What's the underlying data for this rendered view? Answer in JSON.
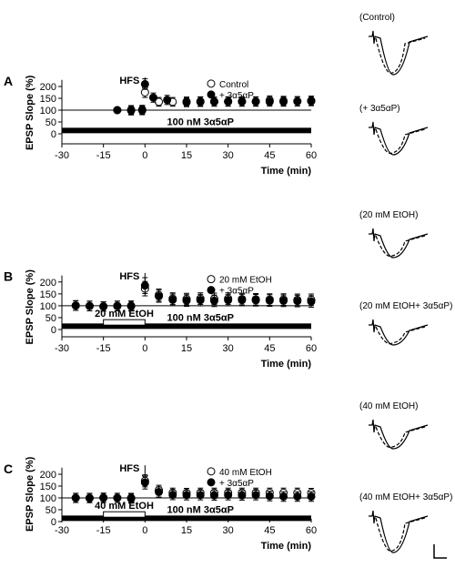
{
  "figure": {
    "panels": [
      {
        "label": "A",
        "hfs_label": "HFS",
        "bar_label": "100 nM 3α5αP",
        "ethanol_label": "",
        "legend": [
          "Control",
          "+ 3α5αP"
        ],
        "ylabel": "EPSP Slope (%)",
        "xlabel": "Time (min)",
        "trace_labels": [
          "(Control)",
          "(+ 3α5αP)"
        ]
      },
      {
        "label": "B",
        "hfs_label": "HFS",
        "bar_label": "100 nM 3α5αP",
        "ethanol_label": "20 mM EtOH",
        "legend": [
          "20 mM EtOH",
          "+ 3α5αP"
        ],
        "ylabel": "EPSP Slope (%)",
        "xlabel": "Time (min)",
        "trace_labels": [
          "(20 mM EtOH)",
          "(20 mM EtOH+ 3α5αP)"
        ]
      },
      {
        "label": "C",
        "hfs_label": "HFS",
        "bar_label": "100 nM 3α5αP",
        "ethanol_label": "40 mM EtOH",
        "legend": [
          "40 mM EtOH",
          "+ 3α5αP"
        ],
        "ylabel": "EPSP Slope (%)",
        "xlabel": "Time (min)",
        "trace_labels": [
          "(40 mM EtOH)",
          "(40 mM EtOH+ 3α5αP)"
        ]
      }
    ]
  },
  "chart_data": [
    {
      "type": "scatter",
      "panel": "A",
      "xlabel": "Time (min)",
      "ylabel": "EPSP Slope (%)",
      "xlim": [
        -30,
        60
      ],
      "ylim": [
        0,
        220
      ],
      "xticks": [
        -30,
        -15,
        0,
        15,
        30,
        45,
        60
      ],
      "yticks": [
        0,
        50,
        100,
        150,
        200
      ],
      "reference_line": 100,
      "hfs_time": 0,
      "drug_bar": [
        -30,
        60
      ],
      "ethanol_bar": null,
      "series": [
        {
          "name": "Control",
          "marker": "open-circle",
          "x": [
            -10,
            -5,
            -1,
            0,
            5,
            10,
            15,
            20,
            25,
            30,
            35,
            40,
            45,
            50,
            55,
            60
          ],
          "y": [
            100,
            101,
            99,
            175,
            135,
            135,
            133,
            135,
            136,
            137,
            136,
            137,
            141,
            139,
            138,
            140
          ],
          "err": [
            0,
            3,
            3,
            6,
            3,
            3,
            3,
            4,
            3,
            4,
            4,
            4,
            4,
            4,
            4,
            4
          ]
        },
        {
          "name": "+ 3α5αP",
          "marker": "filled-circle",
          "x": [
            -10,
            -5,
            -1,
            0,
            3,
            8,
            15,
            20,
            25,
            30,
            35,
            40,
            45,
            50,
            55,
            60
          ],
          "y": [
            100,
            98,
            102,
            210,
            153,
            143,
            136,
            137,
            136,
            136,
            137,
            136,
            136,
            136,
            137,
            138
          ],
          "err": [
            0,
            3,
            3,
            7,
            4,
            4,
            4,
            4,
            4,
            4,
            4,
            4,
            4,
            4,
            4,
            4
          ]
        }
      ]
    },
    {
      "type": "scatter",
      "panel": "B",
      "xlabel": "Time (min)",
      "ylabel": "EPSP Slope (%)",
      "xlim": [
        -30,
        60
      ],
      "ylim": [
        0,
        220
      ],
      "xticks": [
        -30,
        -15,
        0,
        15,
        30,
        45,
        60
      ],
      "yticks": [
        0,
        50,
        100,
        150,
        200
      ],
      "reference_line": 100,
      "hfs_time": 0,
      "drug_bar": [
        -30,
        60
      ],
      "ethanol_bar": [
        -15,
        0
      ],
      "series": [
        {
          "name": "20 mM EtOH",
          "marker": "open-circle",
          "x": [
            -25,
            -20,
            -15,
            -10,
            -5,
            0,
            5,
            10,
            15,
            20,
            25,
            30,
            35,
            40,
            45,
            50,
            55,
            60
          ],
          "y": [
            101,
            99,
            97,
            99,
            100,
            172,
            145,
            130,
            128,
            130,
            129,
            130,
            128,
            127,
            126,
            126,
            125,
            125
          ],
          "err": [
            5,
            5,
            4,
            5,
            5,
            15,
            10,
            9,
            9,
            9,
            9,
            9,
            9,
            9,
            9,
            9,
            9,
            9
          ]
        },
        {
          "name": "+ 3α5αP",
          "marker": "filled-circle",
          "x": [
            -25,
            -20,
            -15,
            -10,
            -5,
            0,
            5,
            10,
            15,
            20,
            25,
            30,
            35,
            40,
            45,
            50,
            55,
            60
          ],
          "y": [
            101,
            99,
            97,
            99,
            98,
            185,
            140,
            125,
            122,
            124,
            121,
            124,
            124,
            123,
            122,
            121,
            120,
            118
          ],
          "err": [
            5,
            5,
            4,
            5,
            5,
            18,
            10,
            9,
            9,
            9,
            9,
            9,
            9,
            9,
            9,
            9,
            9,
            9
          ]
        }
      ]
    },
    {
      "type": "scatter",
      "panel": "C",
      "xlabel": "Time (min)",
      "ylabel": "EPSP Slope (%)",
      "xlim": [
        -30,
        60
      ],
      "ylim": [
        0,
        220
      ],
      "xticks": [
        -30,
        -15,
        0,
        15,
        30,
        45,
        60
      ],
      "yticks": [
        0,
        50,
        100,
        150,
        200
      ],
      "reference_line": 100,
      "hfs_time": 0,
      "drug_bar": [
        -30,
        60
      ],
      "ethanol_bar": [
        -15,
        0
      ],
      "series": [
        {
          "name": "40 mM EtOH",
          "marker": "open-circle",
          "x": [
            -25,
            -20,
            -15,
            -10,
            -5,
            0,
            5,
            10,
            15,
            20,
            25,
            30,
            35,
            40,
            45,
            50,
            55,
            60
          ],
          "y": [
            100,
            100,
            101,
            100,
            100,
            172,
            133,
            122,
            121,
            122,
            122,
            122,
            122,
            122,
            122,
            122,
            122,
            121
          ],
          "err": [
            4,
            4,
            4,
            4,
            4,
            10,
            5,
            4,
            4,
            4,
            4,
            4,
            4,
            4,
            4,
            4,
            4,
            4
          ]
        },
        {
          "name": "+ 3α5αP",
          "marker": "filled-circle",
          "x": [
            -25,
            -20,
            -15,
            -10,
            -5,
            0,
            5,
            10,
            15,
            20,
            25,
            30,
            35,
            40,
            45,
            50,
            55,
            60
          ],
          "y": [
            100,
            99,
            100,
            100,
            97,
            165,
            125,
            113,
            112,
            112,
            111,
            112,
            111,
            112,
            108,
            106,
            106,
            106
          ],
          "err": [
            4,
            4,
            4,
            4,
            4,
            12,
            6,
            5,
            5,
            5,
            5,
            5,
            5,
            5,
            5,
            5,
            5,
            5
          ]
        }
      ]
    }
  ]
}
